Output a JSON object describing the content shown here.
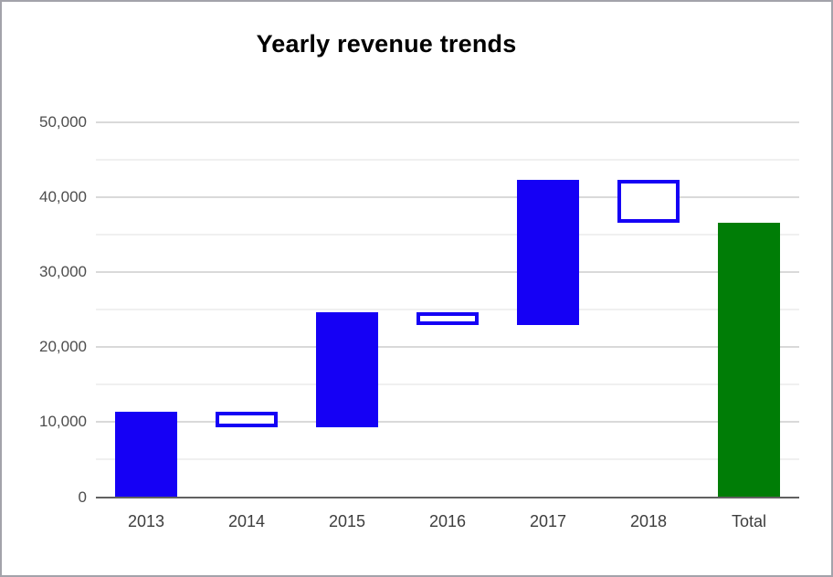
{
  "window": {
    "background": "#ffffff",
    "frame_border_color": "#a3a3aa"
  },
  "chart_data": {
    "type": "waterfall",
    "title": "Yearly revenue trends",
    "categories": [
      "2013",
      "2014",
      "2015",
      "2016",
      "2017",
      "2018",
      "Total"
    ],
    "segments": [
      {
        "label": "2013",
        "start": 0,
        "end": 11400,
        "kind": "increase"
      },
      {
        "label": "2014",
        "start": 11400,
        "end": 9300,
        "kind": "decrease"
      },
      {
        "label": "2015",
        "start": 9300,
        "end": 24600,
        "kind": "increase"
      },
      {
        "label": "2016",
        "start": 24600,
        "end": 22900,
        "kind": "decrease"
      },
      {
        "label": "2017",
        "start": 22900,
        "end": 42300,
        "kind": "increase"
      },
      {
        "label": "2018",
        "start": 42300,
        "end": 36500,
        "kind": "decrease"
      },
      {
        "label": "Total",
        "start": 0,
        "end": 36500,
        "kind": "total"
      }
    ],
    "y_axis": {
      "min": 0,
      "max": 50000,
      "major_ticks": [
        0,
        10000,
        20000,
        30000,
        40000,
        50000
      ],
      "major_tick_labels": [
        "0",
        "10,000",
        "20,000",
        "30,000",
        "40,000",
        "50,000"
      ],
      "minor_tick_interval": 5000
    },
    "x_axis_labels": [
      "2013",
      "2014",
      "2015",
      "2016",
      "2017",
      "2018",
      "Total"
    ],
    "legend_position": "none",
    "grid": true,
    "colors": {
      "increase_fill": "#1500f5",
      "decrease_fill": "#ffffff",
      "decrease_border": "#1500f5",
      "total_fill": "#007d06",
      "major_gridline": "#d9d9d9",
      "minor_gridline": "#f0f0f0",
      "axis_baseline": "#616161",
      "y_label_color": "#4d4d4d",
      "x_label_color": "#3d3d3d",
      "title_color": "#000000"
    }
  }
}
